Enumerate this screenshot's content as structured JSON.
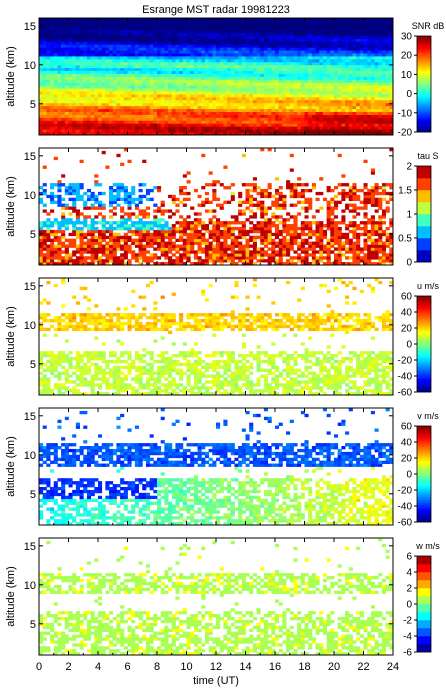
{
  "chart_data": [
    {
      "type": "heatmap",
      "title": "Esrange MST radar 19981223",
      "xlabel": "",
      "ylabel": "altitude (km)",
      "xlim": [
        0,
        24
      ],
      "ylim": [
        1,
        16
      ],
      "x_ticks": [
        0,
        2,
        4,
        6,
        8,
        10,
        12,
        14,
        16,
        18,
        20,
        22,
        24
      ],
      "x_tick_labels": [],
      "y_ticks": [
        5,
        10,
        15
      ],
      "colorbar": {
        "label": "SNR dB",
        "min": -20,
        "max": 30,
        "ticks": [
          -20,
          -10,
          0,
          10,
          20,
          30
        ]
      },
      "colormap": "jet",
      "field": {
        "description_values": "SNR decreases with altitude; ~30 dB near ground, ~-10 dB above 12 km",
        "surface_value": 30,
        "top_value": -10
      }
    },
    {
      "type": "heatmap",
      "title": "",
      "xlabel": "",
      "ylabel": "altitude (km)",
      "xlim": [
        0,
        24
      ],
      "ylim": [
        1,
        16
      ],
      "x_ticks": [
        0,
        2,
        4,
        6,
        8,
        10,
        12,
        14,
        16,
        18,
        20,
        22,
        24
      ],
      "x_tick_labels": [],
      "y_ticks": [
        5,
        10,
        15
      ],
      "colorbar": {
        "label": "tau S",
        "min": 0,
        "max": 2,
        "ticks": [
          0,
          0.5,
          1,
          1.5,
          2
        ]
      },
      "colormap": "jet-discrete"
    },
    {
      "type": "heatmap",
      "title": "",
      "xlabel": "",
      "ylabel": "altitude (km)",
      "xlim": [
        0,
        24
      ],
      "ylim": [
        1,
        16
      ],
      "x_ticks": [
        0,
        2,
        4,
        6,
        8,
        10,
        12,
        14,
        16,
        18,
        20,
        22,
        24
      ],
      "x_tick_labels": [],
      "y_ticks": [
        5,
        10,
        15
      ],
      "colorbar": {
        "label": "u m/s",
        "min": -60,
        "max": 60,
        "ticks": [
          -60,
          -40,
          -20,
          0,
          20,
          40,
          60
        ]
      },
      "colormap": "jet"
    },
    {
      "type": "heatmap",
      "title": "",
      "xlabel": "",
      "ylabel": "altitude (km)",
      "xlim": [
        0,
        24
      ],
      "ylim": [
        1,
        16
      ],
      "x_ticks": [
        0,
        2,
        4,
        6,
        8,
        10,
        12,
        14,
        16,
        18,
        20,
        22,
        24
      ],
      "x_tick_labels": [],
      "y_ticks": [
        5,
        10,
        15
      ],
      "colorbar": {
        "label": "v m/s",
        "min": -60,
        "max": 60,
        "ticks": [
          -60,
          -40,
          -20,
          0,
          20,
          40,
          60
        ]
      },
      "colormap": "jet"
    },
    {
      "type": "heatmap",
      "title": "",
      "xlabel": "time (UT)",
      "ylabel": "altitude (km)",
      "xlim": [
        0,
        24
      ],
      "ylim": [
        1,
        16
      ],
      "x_ticks": [
        0,
        2,
        4,
        6,
        8,
        10,
        12,
        14,
        16,
        18,
        20,
        22,
        24
      ],
      "x_tick_labels": [
        "0",
        "2",
        "4",
        "6",
        "8",
        "10",
        "12",
        "14",
        "16",
        "18",
        "20",
        "22",
        "24"
      ],
      "y_ticks": [
        5,
        10,
        15
      ],
      "colorbar": {
        "label": "w m/s",
        "min": -6,
        "max": 6,
        "ticks": [
          -6,
          -4,
          -2,
          0,
          2,
          4,
          6
        ]
      },
      "colormap": "jet-discrete"
    }
  ]
}
